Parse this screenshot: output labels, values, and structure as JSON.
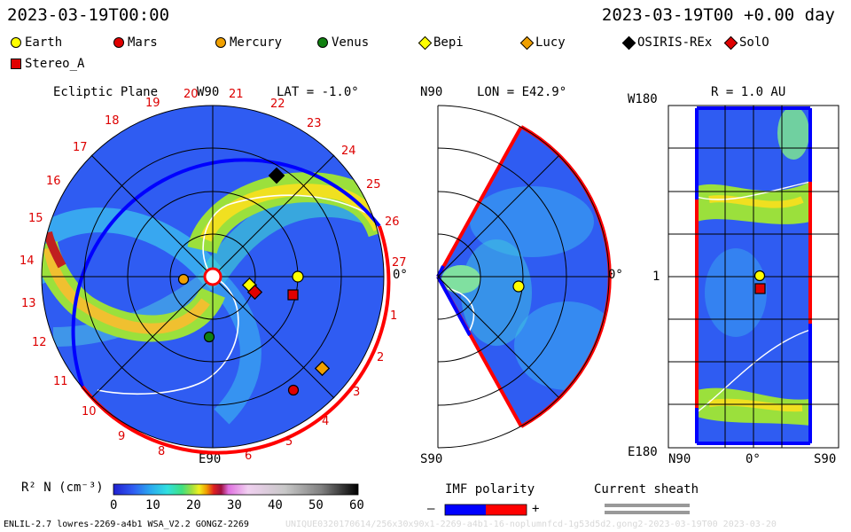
{
  "header": {
    "left_time": "2023-03-19T00:00",
    "right_time": "2023-03-19T00 +0.00 day"
  },
  "legend": [
    {
      "name": "Earth",
      "shape": "circle",
      "color": "#ffff00"
    },
    {
      "name": "Mars",
      "shape": "circle",
      "color": "#e00000"
    },
    {
      "name": "Mercury",
      "shape": "circle",
      "color": "#f0a000"
    },
    {
      "name": "Venus",
      "shape": "circle",
      "color": "#108010"
    },
    {
      "name": "Bepi",
      "shape": "diamond",
      "color": "#ffff00"
    },
    {
      "name": "Lucy",
      "shape": "diamond",
      "color": "#f0a000"
    },
    {
      "name": "OSIRIS-REx",
      "shape": "diamond",
      "color": "#000000"
    },
    {
      "name": "SolO",
      "shape": "diamond",
      "color": "#e00000"
    },
    {
      "name": "Stereo_A",
      "shape": "square",
      "color": "#e00000"
    }
  ],
  "ecliptic": {
    "title": "Ecliptic Plane",
    "lat_label": "LAT = -1.0°",
    "top_label": "W90",
    "bottom_label": "E90",
    "right_label": "0°",
    "rotation_numbers": [
      "19",
      "20",
      "21",
      "22",
      "23",
      "24",
      "25",
      "26",
      "27",
      "1",
      "2",
      "3",
      "4",
      "5",
      "6",
      "7",
      "8",
      "9",
      "10",
      "11",
      "12",
      "13",
      "14",
      "15",
      "16",
      "17",
      "18"
    ]
  },
  "meridional": {
    "title_left": "N90",
    "title_right": "LON = E42.9°",
    "bottom_label": "S90",
    "right_label": "0°"
  },
  "au_panel": {
    "title": "R = 1.0 AU",
    "top_label": "W180",
    "mid_label": "1",
    "bottom_label": "E180",
    "x_labels": [
      "N90",
      "0°",
      "S90"
    ]
  },
  "colorbar": {
    "label": "R² N (cm⁻³)",
    "ticks": [
      "0",
      "10",
      "20",
      "30",
      "40",
      "50",
      "60"
    ]
  },
  "imf": {
    "label": "IMF polarity",
    "minus": "–",
    "plus": "+"
  },
  "sheath": {
    "label": "Current sheath"
  },
  "footer": {
    "left": "ENLIL-2.7 lowres-2269-a4b1 WSA_V2.2 GONGZ-2269",
    "right": "UNIQUE0320170614/256x30x90x1-2269-a4b1-16-noplumnfcd-1g53d5d2.gong2-2023-03-19T00   2023-03-20"
  },
  "colors": {
    "imf_negative": "#0000ff",
    "imf_positive": "#ff0000",
    "background_wind": "#2850f0"
  }
}
